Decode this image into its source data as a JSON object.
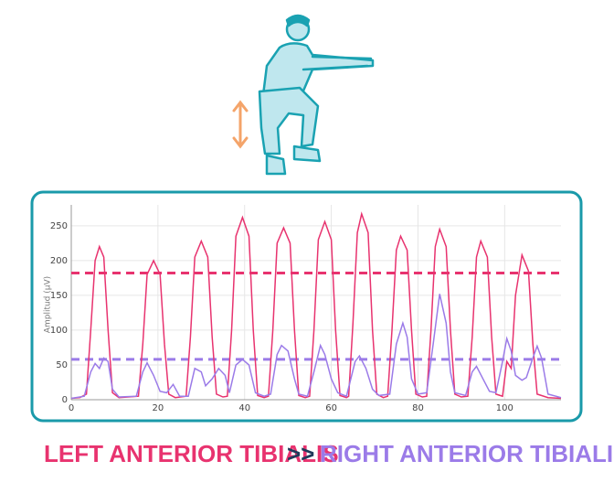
{
  "chart_data": {
    "type": "line",
    "y_label": "Amplitud (μV)",
    "xlim": [
      0,
      113
    ],
    "ylim": [
      0,
      280
    ],
    "xticks": [
      0,
      20,
      40,
      60,
      80,
      100
    ],
    "yticks": [
      0,
      50,
      100,
      150,
      200,
      250
    ],
    "grid": true,
    "series": [
      {
        "name": "LEFT ANTERIOR TIBIALIS",
        "color": "#e8336f",
        "threshold": 182,
        "x": [
          0,
          2,
          3.5,
          4.5,
          5.5,
          6.5,
          7.5,
          8.5,
          9.5,
          11,
          15.5,
          16.5,
          17.5,
          19,
          20.5,
          21.5,
          22.5,
          24,
          26.5,
          27.5,
          28.5,
          30,
          31.5,
          32.5,
          33.5,
          35,
          36,
          37,
          38,
          39.5,
          41,
          42,
          43,
          44.5,
          45.5,
          46.5,
          47.5,
          49,
          50.5,
          51.5,
          52.5,
          54,
          55,
          56,
          57,
          58.5,
          60,
          61,
          62,
          63.5,
          64,
          65,
          66,
          67,
          68.5,
          69.5,
          70.5,
          72,
          73,
          74,
          75,
          76,
          77.5,
          78.5,
          79.5,
          81,
          82,
          83,
          84,
          85,
          86.5,
          87.5,
          88.5,
          90,
          91.5,
          92.5,
          93.5,
          94.5,
          96,
          97,
          98,
          99.5,
          100.5,
          101.5,
          102.5,
          104,
          105.5,
          106.5,
          107.5,
          110,
          113
        ],
        "values": [
          2,
          3,
          8,
          100,
          200,
          220,
          205,
          100,
          10,
          3,
          5,
          80,
          180,
          200,
          180,
          80,
          8,
          3,
          5,
          90,
          205,
          228,
          205,
          90,
          8,
          4,
          5,
          100,
          235,
          262,
          235,
          100,
          6,
          3,
          5,
          100,
          225,
          247,
          225,
          100,
          6,
          3,
          5,
          100,
          230,
          256,
          230,
          100,
          6,
          3,
          5,
          110,
          240,
          267,
          240,
          100,
          8,
          3,
          5,
          100,
          215,
          235,
          215,
          100,
          8,
          4,
          5,
          100,
          220,
          245,
          220,
          100,
          8,
          4,
          5,
          90,
          205,
          228,
          205,
          90,
          8,
          5,
          55,
          45,
          150,
          208,
          185,
          80,
          8,
          3,
          2
        ]
      },
      {
        "name": "RIGHT ANTERIOR TIBIALIS",
        "color": "#9b7be8",
        "threshold": 58,
        "x": [
          0,
          3,
          4.5,
          5.5,
          6.5,
          7.5,
          8.5,
          9.5,
          11,
          15,
          16.5,
          17.5,
          19,
          20.5,
          22,
          23.5,
          25,
          27,
          28.5,
          30,
          31,
          32.5,
          34,
          35.5,
          36.5,
          38,
          39.5,
          41,
          42.5,
          44.5,
          46,
          47.5,
          48.5,
          50,
          51.5,
          52.5,
          54.5,
          56,
          57.5,
          58.5,
          60,
          61.5,
          63.5,
          65.5,
          66.5,
          68,
          69.5,
          71,
          73.5,
          75,
          76.5,
          77.5,
          78.5,
          80,
          82,
          83.5,
          85,
          86.5,
          87.5,
          88.5,
          91,
          92.5,
          93.5,
          95,
          96.5,
          98,
          99.5,
          100.5,
          101.5,
          102.5,
          104,
          105,
          106.5,
          107.5,
          108.5,
          110,
          113
        ],
        "values": [
          2,
          5,
          40,
          52,
          45,
          60,
          55,
          15,
          4,
          5,
          40,
          53,
          35,
          12,
          10,
          22,
          5,
          5,
          45,
          40,
          20,
          30,
          45,
          35,
          10,
          50,
          58,
          50,
          10,
          5,
          8,
          65,
          78,
          70,
          30,
          8,
          5,
          40,
          78,
          65,
          30,
          10,
          5,
          55,
          63,
          45,
          15,
          6,
          8,
          80,
          110,
          90,
          30,
          8,
          10,
          80,
          152,
          110,
          40,
          10,
          6,
          40,
          48,
          30,
          12,
          10,
          55,
          88,
          70,
          35,
          28,
          32,
          60,
          77,
          60,
          8,
          3
        ]
      }
    ]
  },
  "caption": {
    "left": "LEFT ANTERIOR TIBIALIS",
    "separator": ">>",
    "right": "RIGHT ANTERIOR TIBIALIS"
  }
}
